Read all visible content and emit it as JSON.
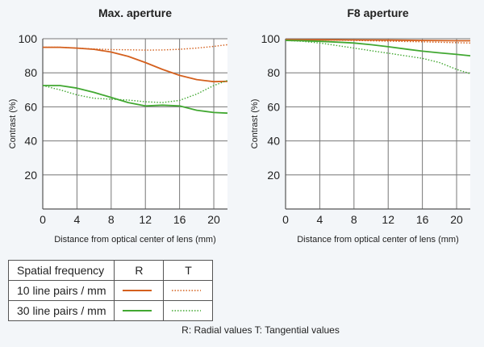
{
  "chart_data": [
    {
      "type": "line",
      "title": "Max. aperture",
      "xlabel": "Distance from optical center of lens (mm)",
      "ylabel": "Contrast (%)",
      "xlim": [
        0,
        21.6
      ],
      "ylim": [
        0,
        100
      ],
      "xticks": [
        "0",
        "4",
        "8",
        "12",
        "16",
        "20"
      ],
      "yticks": [
        "20",
        "40",
        "60",
        "80",
        "100"
      ],
      "grid": true,
      "series": [
        {
          "name": "10 line pairs / mm R",
          "style": "solid",
          "color": "#d4601e",
          "x": [
            0,
            2,
            4,
            6,
            8,
            10,
            12,
            14,
            16,
            18,
            20,
            21.6
          ],
          "y": [
            95,
            95,
            94.5,
            93.8,
            92.2,
            89.6,
            86,
            82,
            78.5,
            76,
            74.8,
            75
          ]
        },
        {
          "name": "10 line pairs / mm T",
          "style": "dotted",
          "color": "#d4601e",
          "x": [
            0,
            2,
            4,
            6,
            8,
            10,
            12,
            14,
            16,
            18,
            20,
            21.6
          ],
          "y": [
            95,
            95,
            94.5,
            94,
            93.6,
            93.5,
            93.3,
            93.4,
            93.8,
            94.5,
            95.5,
            96.5
          ]
        },
        {
          "name": "30 line pairs / mm R",
          "style": "solid",
          "color": "#42a832",
          "x": [
            0,
            2,
            4,
            6,
            8,
            10,
            12,
            14,
            16,
            18,
            20,
            21.6
          ],
          "y": [
            72.5,
            72.5,
            71,
            68.5,
            65.5,
            62.5,
            60.5,
            61,
            60.5,
            58,
            56.7,
            56.3
          ]
        },
        {
          "name": "30 line pairs / mm T",
          "style": "dotted",
          "color": "#42a832",
          "x": [
            0,
            2,
            4,
            6,
            8,
            10,
            12,
            14,
            16,
            18,
            20,
            21.6
          ],
          "y": [
            72.5,
            70,
            67,
            65,
            64.5,
            64,
            63,
            62.5,
            63.8,
            67.5,
            72.5,
            75.5
          ]
        }
      ]
    },
    {
      "type": "line",
      "title": "F8 aperture",
      "xlabel": "Distance from optical center of lens (mm)",
      "ylabel": "Contrast (%)",
      "xlim": [
        0,
        21.6
      ],
      "ylim": [
        0,
        100
      ],
      "xticks": [
        "0",
        "4",
        "8",
        "12",
        "16",
        "20"
      ],
      "yticks": [
        "20",
        "40",
        "60",
        "80",
        "100"
      ],
      "grid": true,
      "series": [
        {
          "name": "10 line pairs / mm R",
          "style": "solid",
          "color": "#d4601e",
          "x": [
            0,
            4,
            8,
            12,
            16,
            20,
            21.6
          ],
          "y": [
            99.5,
            99.4,
            99.3,
            99.2,
            99,
            98.8,
            98.8
          ]
        },
        {
          "name": "10 line pairs / mm T",
          "style": "dotted",
          "color": "#d4601e",
          "x": [
            0,
            4,
            8,
            12,
            16,
            20,
            21.6
          ],
          "y": [
            99.5,
            99.3,
            99,
            98.6,
            98.2,
            97.7,
            97.5
          ]
        },
        {
          "name": "30 line pairs / mm R",
          "style": "solid",
          "color": "#42a832",
          "x": [
            0,
            2,
            4,
            6,
            8,
            10,
            12,
            14,
            16,
            18,
            20,
            21.6
          ],
          "y": [
            99,
            98.8,
            98.5,
            98,
            97.5,
            96.5,
            95.3,
            94,
            92.7,
            91.7,
            90.8,
            90
          ]
        },
        {
          "name": "30 line pairs / mm T",
          "style": "dotted",
          "color": "#42a832",
          "x": [
            0,
            2,
            4,
            6,
            8,
            10,
            12,
            14,
            16,
            18,
            20,
            21.6
          ],
          "y": [
            99,
            98.5,
            97.5,
            96,
            94.5,
            93,
            91.5,
            90,
            88.5,
            86,
            82,
            79.5
          ]
        }
      ]
    }
  ],
  "legend": {
    "header": "Spatial frequency",
    "col_r": "R",
    "col_t": "T",
    "rows": [
      {
        "label": "10 line pairs / mm",
        "color": "#d4601e"
      },
      {
        "label": "30 line pairs / mm",
        "color": "#42a832"
      }
    ],
    "note": "R: Radial values  T: Tangential values"
  },
  "colors": {
    "orange": "#d4601e",
    "green": "#42a832",
    "grid": "#777777",
    "plot_bg": "#ffffff"
  }
}
